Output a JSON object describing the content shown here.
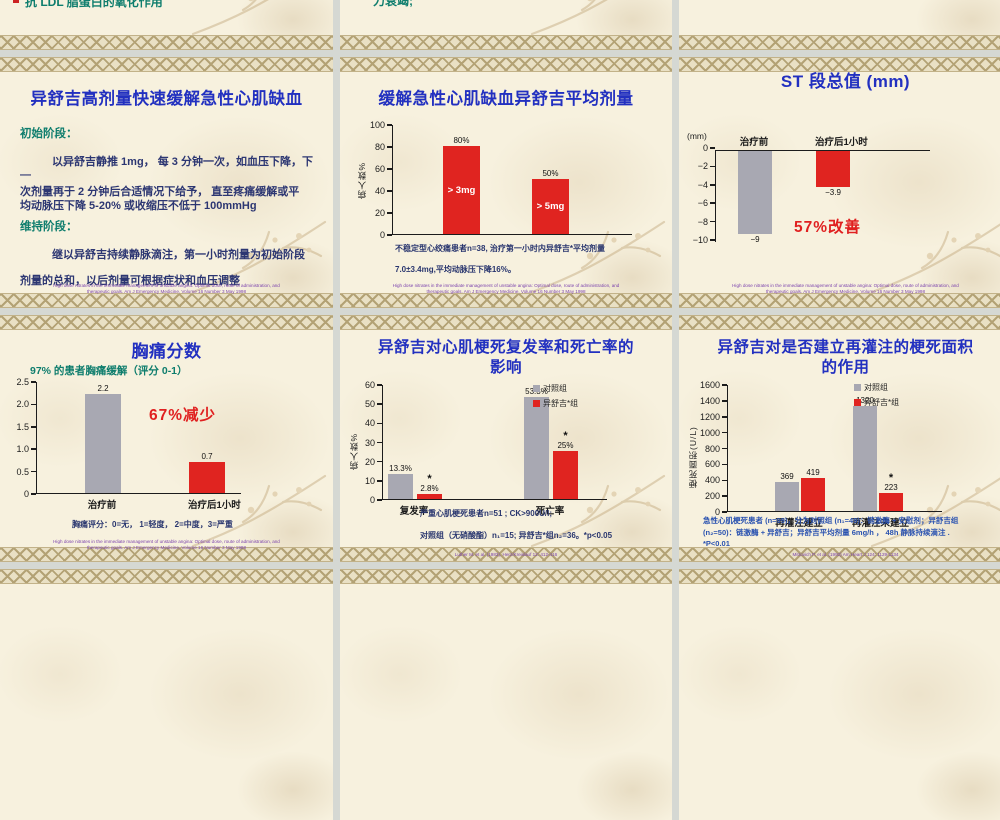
{
  "colors": {
    "page_gap": "#d5d8d3",
    "slide_bg": "#f7f1de",
    "title_blue": "#2230c0",
    "teal": "#0e7d6d",
    "body_navy": "#2c3672",
    "red_text": "#e02020",
    "bar_gray": "#a8a8b2",
    "bar_red": "#e02420",
    "citation_purple": "#7b42ad"
  },
  "slides": {
    "top_left": {
      "bullet_text": "抗 LDL 脂蛋白的氧化作用"
    },
    "top_mid": {
      "text": "力衰竭;"
    },
    "s1": {
      "title": "异舒吉高剂量快速缓解急性心肌缺血",
      "h1": "初始阶段：",
      "p1": "以异舒吉静推 1mg， 每 3 分钟一次，如血压下降，下",
      "p1b": "—",
      "p2": "次剂量再于 2 分钟后合适情况下给予， 直至疼痛缓解或平",
      "p3": "均动脉压下降 5-20% 或收缩压不低于 100mmHg",
      "h2": "维持阶段：",
      "p4": "继以异舒吉持续静脉滴注，第一小时剂量为初始阶段",
      "p5": "剂量的总和，以后剂量可根据症状和血压调整",
      "citation": "High dose nitrates in the immediate management of unstable angina: Optimal dose, route of administration, and therapeutic goals. Am J Emergency Medicine, Volume 16 Number 3 May 1998"
    },
    "s2": {
      "title": "缓解急性心肌缺血异舒吉平均剂量",
      "note1": "不稳定型心绞痛患者n=38, 治疗第一小时内异舒吉*平均剂量",
      "note2": "7.0±3.4mg,平均动脉压下降16%。",
      "citation": "High dose nitrates in the immediate management of unstable angina: Optimal dose, route of administration, and therapeutic goals. Am J Emergency Medicine, Volume 16 Number 3 May 1998"
    },
    "s3": {
      "title": "ST 段总值  (mm)",
      "citation": "High dose nitrates in the immediate management of unstable angina: Optimal dose, route of administration, and therapeutic goals. Am J Emergency Medicine, Volume 16 Number 3 May 1998"
    },
    "s4": {
      "title": "胸痛分数",
      "subtitle": "97% 的患者胸痛缓解（评分 0-1）",
      "note": "胸痛评分：0=无， 1=轻度， 2=中度，3=严重",
      "citation": "High dose nitrates in the immediate management of unstable angina: Optimal dose, route of administration, and therapeutic goals. Am J Emergency Medicine, Volume 16 Number 3 May 1998"
    },
    "s5": {
      "title1": "异舒吉对心肌梗死复发率和死亡率的",
      "title2": "影响",
      "note1": "严重心肌梗死患者n=51 ; CK>900U/l;",
      "note2": "对照组（无硝酸酯）n₁=15; 异舒吉*组n₂=36。*p<0.05",
      "citation": "Luther M. et al. (1983), Herz/Kreislauf 12: 412-416"
    },
    "s6": {
      "title1": "异舒吉对是否建立再灌注的梗死面积",
      "title2": "的作用",
      "note1": "急性心肌梗死患者 (n=99)，分为对照组 (n₁=49)：链激酶 + 安慰剂；异舒吉组",
      "note2": "(n₂=50)：链激酶 + 异舒吉；异舒吉平均剂量 6mg/h ， 48h 静脉持续滴注 .",
      "note3": "*P<0.01",
      "citation": "Mitrovich P. et al. (1992) Am Heart J 124: 1129-1134"
    }
  },
  "chart_data": [
    {
      "id": "average-dose",
      "type": "bar",
      "title": "缓解急性心肌缺血异舒吉平均剂量",
      "ylabel": "病人数%",
      "ylim": [
        0,
        100
      ],
      "yticks": [
        "100",
        "80",
        "60",
        "40",
        "20",
        "0"
      ],
      "grid": false,
      "groups": [
        {
          "label": "",
          "bars": [
            {
              "value": 80,
              "label": "80%",
              "inner": "> 3mg",
              "color": "#e02420"
            }
          ]
        },
        {
          "label": "",
          "bars": [
            {
              "value": 50,
              "label": "50%",
              "inner": "> 5mg",
              "color": "#e02420"
            }
          ]
        }
      ]
    },
    {
      "id": "st-segment-total",
      "type": "bar",
      "title": "ST 段总值 (mm)",
      "direction": "down",
      "ylabel": "(mm)",
      "ylim": [
        -10,
        0
      ],
      "yticks": [
        "0",
        "−2",
        "−4",
        "−6",
        "−8",
        "−10"
      ],
      "grid": false,
      "groups": [
        {
          "label": "治疗前",
          "bars": [
            {
              "value": -9,
              "label": "−9",
              "color": "#a8a8b2"
            }
          ]
        },
        {
          "label": "治疗后1小时",
          "bars": [
            {
              "value": -3.9,
              "label": "−3.9",
              "color": "#e02420"
            }
          ]
        }
      ],
      "annotation": "57%改善"
    },
    {
      "id": "chest-pain-score",
      "type": "bar",
      "title": "胸痛分数",
      "ylabel": "",
      "ylim": [
        0,
        2.5
      ],
      "yticks": [
        "2.5",
        "2.0",
        "1.5",
        "1.0",
        "0.5",
        "0"
      ],
      "grid": false,
      "groups": [
        {
          "label": "治疗前",
          "bars": [
            {
              "value": 2.2,
              "label": "2.2",
              "color": "#a8a8b2"
            }
          ]
        },
        {
          "label": "治疗后1小时",
          "bars": [
            {
              "value": 0.7,
              "label": "0.7",
              "color": "#e02420"
            }
          ]
        }
      ],
      "annotation": "67%减少"
    },
    {
      "id": "reinfarction-mortality",
      "type": "bar",
      "title": "异舒吉对心肌梗死复发率和死亡率的影响",
      "ylabel": "病人数%",
      "ylim": [
        0,
        60
      ],
      "yticks": [
        "60",
        "50",
        "40",
        "30",
        "20",
        "10",
        "0"
      ],
      "grid": false,
      "legend": [
        {
          "label": "对照组",
          "color": "#a8a8b2"
        },
        {
          "label": "异舒吉*组",
          "color": "#e02420"
        }
      ],
      "groups": [
        {
          "label": "复发率",
          "bars": [
            {
              "value": 13.3,
              "label": "13.3%",
              "color": "#a8a8b2"
            },
            {
              "value": 2.8,
              "label": "2.8%",
              "star": true,
              "color": "#e02420"
            }
          ]
        },
        {
          "label": "死亡率",
          "bars": [
            {
              "value": 53.3,
              "label": "53.3%",
              "color": "#a8a8b2"
            },
            {
              "value": 25,
              "label": "25%",
              "star": true,
              "color": "#e02420"
            }
          ]
        }
      ]
    },
    {
      "id": "infarct-size-reperfusion",
      "type": "bar",
      "title": "异舒吉对是否建立再灌注的梗死面积的作用",
      "ylabel": "梗死面积(U/L)",
      "ylim": [
        0,
        1600
      ],
      "yticks": [
        "1600",
        "1400",
        "1200",
        "1000",
        "800",
        "600",
        "400",
        "200",
        "0"
      ],
      "grid": false,
      "legend": [
        {
          "label": "对照组",
          "color": "#a8a8b2"
        },
        {
          "label": "异舒吉*组",
          "color": "#e02420"
        }
      ],
      "groups": [
        {
          "label": "再灌注建立",
          "bars": [
            {
              "value": 369,
              "label": "369",
              "color": "#a8a8b2"
            },
            {
              "value": 419,
              "label": "419",
              "color": "#e02420"
            }
          ]
        },
        {
          "label": "再灌注未建立",
          "bars": [
            {
              "value": 1320,
              "label": "1320",
              "color": "#a8a8b2"
            },
            {
              "value": 223,
              "label": "223",
              "star": true,
              "color": "#e02420"
            }
          ]
        }
      ]
    }
  ]
}
